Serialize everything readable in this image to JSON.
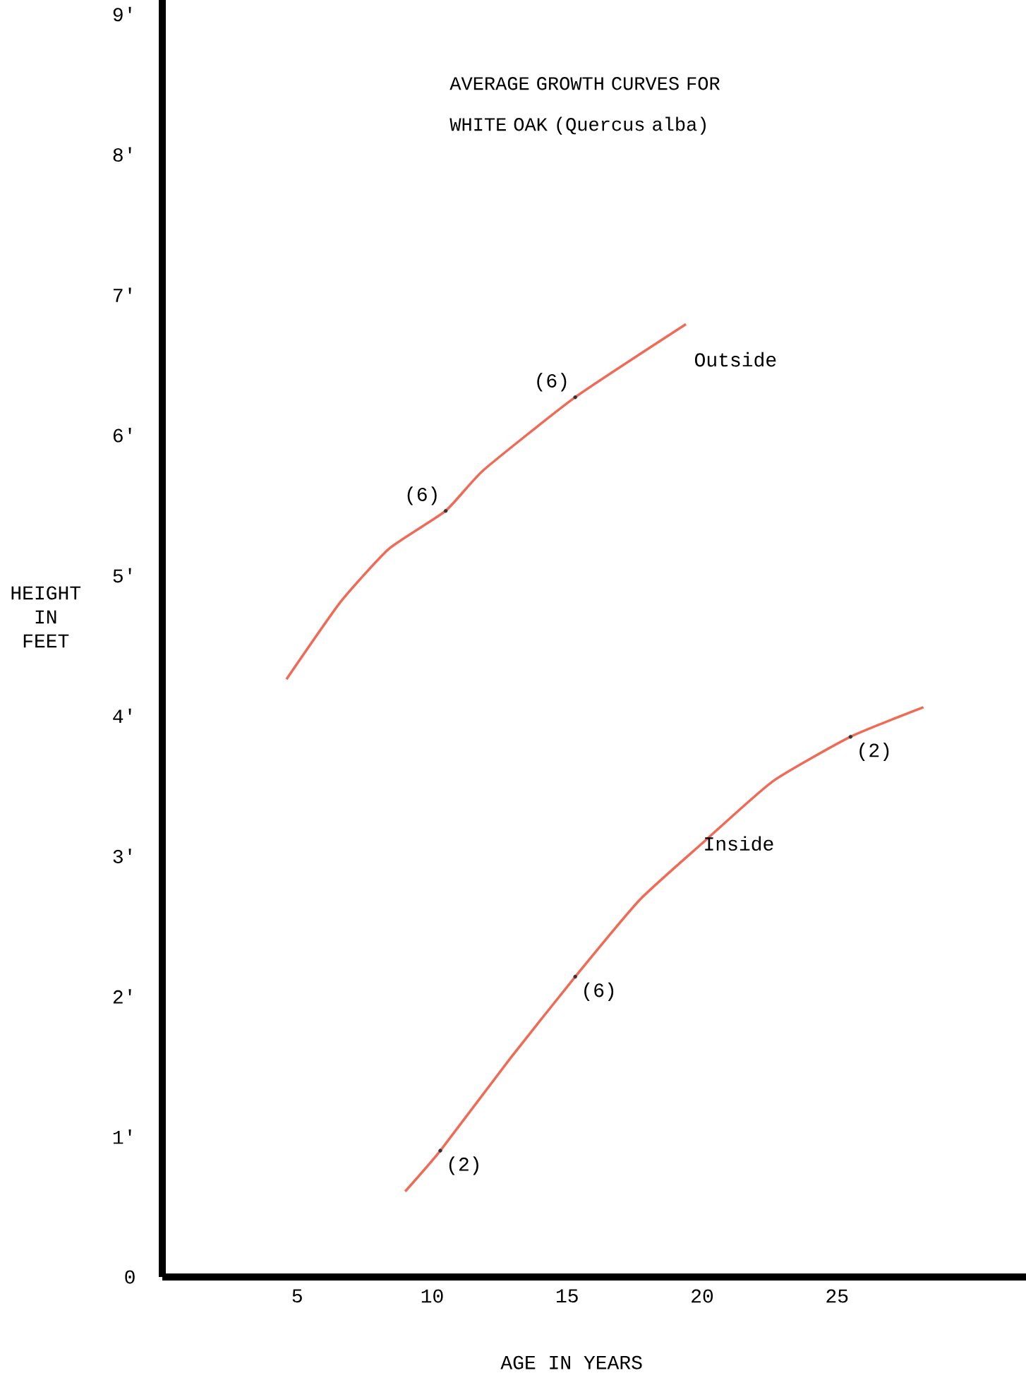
{
  "chart_data": {
    "type": "line",
    "title": "AVERAGE GROWTH CURVES FOR WHITE OAK (Quercus alba)",
    "xlabel": "AGE IN YEARS",
    "ylabel": "HEIGHT IN FEET",
    "xlim": [
      0,
      32
    ],
    "ylim": [
      0,
      9.1
    ],
    "xticks": [
      5,
      10,
      15,
      20,
      25
    ],
    "yticks": [
      0,
      {
        "value": 1,
        "label": "1'"
      },
      {
        "value": 2,
        "label": "2'"
      },
      {
        "value": 3,
        "label": "3'"
      },
      {
        "value": 4,
        "label": "4'"
      },
      {
        "value": 5,
        "label": "5'"
      },
      {
        "value": 6,
        "label": "6'"
      },
      {
        "value": 7,
        "label": "7'"
      },
      {
        "value": 8,
        "label": "8'"
      },
      {
        "value": 9,
        "label": "9'"
      }
    ],
    "series": [
      {
        "name": "Outside",
        "color": "#f06a55",
        "x": [
          4.6,
          6.6,
          8.4,
          10.5,
          11.9,
          15.3,
          19.4
        ],
        "values": [
          4.26,
          4.81,
          5.19,
          5.46,
          5.75,
          6.27,
          6.79
        ]
      },
      {
        "name": "Inside",
        "color": "#f06a55",
        "x": [
          9.0,
          10.3,
          12.9,
          15.3,
          17.7,
          20.0,
          22.6,
          25.5,
          28.2
        ],
        "values": [
          0.61,
          0.9,
          1.56,
          2.14,
          2.69,
          3.09,
          3.53,
          3.85,
          4.06
        ]
      },
      {
        "type": "scatter",
        "marker": "circle",
        "color": "#333333",
        "x": [
          10.5,
          15.3,
          25.5,
          15.3,
          10.3
        ],
        "values": [
          5.46,
          6.27,
          3.85,
          2.14,
          0.9
        ]
      }
    ],
    "annotations": [
      {
        "text": "(6)",
        "x": 10.5,
        "y": 5.46
      },
      {
        "text": "(6)",
        "x": 15.3,
        "y": 6.27
      },
      {
        "text": "(2)",
        "x": 25.5,
        "y": 3.85
      },
      {
        "text": "(6)",
        "x": 15.3,
        "y": 2.14
      },
      {
        "text": "(2)",
        "x": 10.3,
        "y": 0.9
      }
    ]
  }
}
